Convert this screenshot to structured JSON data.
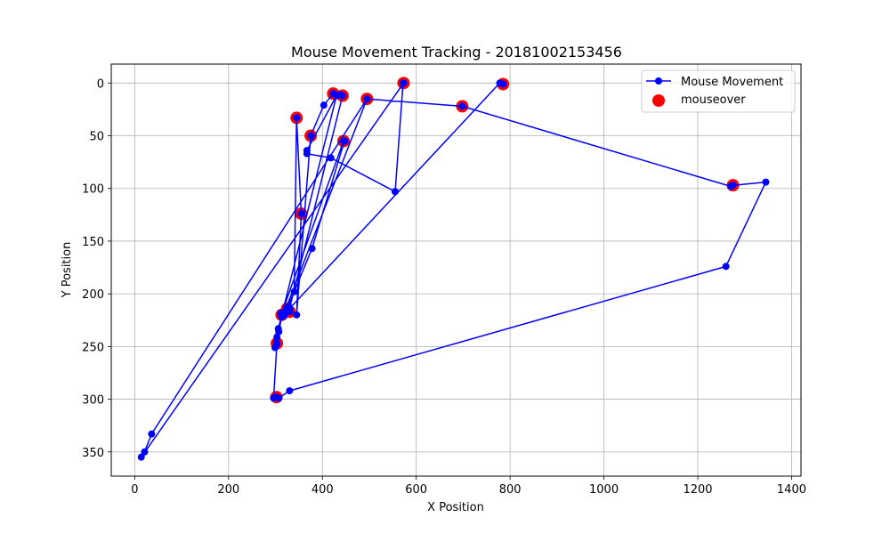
{
  "chart_data": {
    "type": "line",
    "title": "Mouse Movement Tracking - 20181002153456",
    "xlabel": "X Position",
    "ylabel": "Y Position",
    "xlim": [
      -50,
      1420
    ],
    "ylim": [
      373,
      -18
    ],
    "y_inverted": true,
    "grid": true,
    "legend_position": "top-right",
    "xticks": [
      0,
      200,
      400,
      600,
      800,
      1000,
      1200,
      1400
    ],
    "yticks": [
      0,
      50,
      100,
      150,
      200,
      250,
      300,
      350
    ],
    "colors": {
      "line": "#0000ff",
      "highlight": "#ff0000",
      "grid": "#b0b0b0"
    },
    "series": [
      {
        "name": "Mouse Movement",
        "marker": "circle",
        "points": [
          [
            785,
            1
          ],
          [
            778,
            0
          ],
          [
            330,
            214
          ],
          [
            318,
            221
          ],
          [
            312,
            218
          ],
          [
            311,
            219
          ],
          [
            325,
            215
          ],
          [
            330,
            217
          ],
          [
            313,
            221
          ],
          [
            306,
            233
          ],
          [
            303,
            241
          ],
          [
            302,
            246
          ],
          [
            299,
            251
          ],
          [
            307,
            236
          ],
          [
            313,
            222
          ],
          [
            327,
            213
          ],
          [
            340,
            198
          ],
          [
            345,
            33
          ],
          [
            355,
            124
          ],
          [
            345,
            220
          ],
          [
            375,
            50
          ],
          [
            403,
            21
          ],
          [
            423,
            10
          ],
          [
            437,
            11
          ],
          [
            443,
            12
          ],
          [
            330,
            214
          ],
          [
            312,
            220
          ],
          [
            445,
            55
          ],
          [
            448,
            55
          ],
          [
            447,
            55
          ],
          [
            378,
            157
          ],
          [
            325,
            214
          ],
          [
            317,
            220
          ],
          [
            495,
            15
          ],
          [
            698,
            22
          ],
          [
            1270,
            98
          ],
          [
            1275,
            97
          ],
          [
            1345,
            94
          ],
          [
            1260,
            174
          ],
          [
            330,
            292
          ],
          [
            307,
            299
          ],
          [
            300,
            298
          ],
          [
            296,
            299
          ],
          [
            303,
            248
          ],
          [
            313,
            221
          ],
          [
            430,
            12
          ],
          [
            367,
            64
          ],
          [
            367,
            67
          ],
          [
            418,
            71
          ],
          [
            555,
            103
          ],
          [
            572,
            0
          ],
          [
            573,
            0
          ],
          [
            14,
            355
          ],
          [
            21,
            350
          ],
          [
            36,
            333
          ],
          [
            495,
            15
          ]
        ]
      },
      {
        "name": "mouseover",
        "marker": "circle",
        "points": [
          [
            785,
            1
          ],
          [
            573,
            0
          ],
          [
            423,
            10
          ],
          [
            443,
            12
          ],
          [
            495,
            15
          ],
          [
            698,
            22
          ],
          [
            345,
            33
          ],
          [
            375,
            50
          ],
          [
            445,
            55
          ],
          [
            1275,
            97
          ],
          [
            355,
            124
          ],
          [
            330,
            217
          ],
          [
            325,
            214
          ],
          [
            313,
            220
          ],
          [
            303,
            247
          ],
          [
            302,
            298
          ]
        ]
      }
    ]
  }
}
